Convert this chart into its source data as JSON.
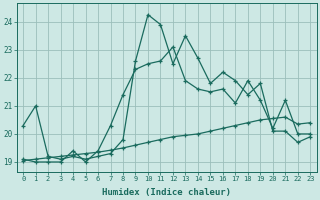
{
  "xlabel": "Humidex (Indice chaleur)",
  "bg_color": "#cde8e4",
  "grid_color": "#9bbfbb",
  "line_color": "#1a6b5e",
  "x_ticks": [
    0,
    1,
    2,
    3,
    4,
    5,
    6,
    7,
    8,
    9,
    10,
    11,
    12,
    13,
    14,
    15,
    16,
    17,
    18,
    19,
    20,
    21,
    22,
    23
  ],
  "y_ticks": [
    19,
    20,
    21,
    22,
    23,
    24
  ],
  "ylim": [
    18.65,
    24.65
  ],
  "xlim": [
    -0.5,
    23.5
  ],
  "series1_y": [
    20.3,
    21.0,
    19.2,
    19.1,
    19.2,
    19.1,
    19.2,
    19.3,
    19.8,
    22.6,
    24.25,
    23.9,
    22.5,
    23.5,
    22.7,
    21.8,
    22.2,
    21.9,
    21.4,
    21.8,
    20.1,
    20.1,
    19.7,
    19.9
  ],
  "series2_y": [
    19.05,
    19.1,
    19.15,
    19.2,
    19.25,
    19.3,
    19.35,
    19.42,
    19.5,
    19.6,
    19.7,
    19.8,
    19.9,
    19.95,
    20.0,
    20.1,
    20.2,
    20.3,
    20.4,
    20.5,
    20.55,
    20.6,
    20.35,
    20.4
  ],
  "series3_y": [
    19.1,
    19.0,
    19.0,
    19.0,
    19.4,
    19.0,
    19.4,
    20.3,
    21.4,
    22.3,
    22.5,
    22.6,
    23.1,
    21.9,
    21.6,
    21.5,
    21.6,
    21.1,
    21.9,
    21.2,
    20.2,
    21.2,
    20.0,
    20.0
  ]
}
